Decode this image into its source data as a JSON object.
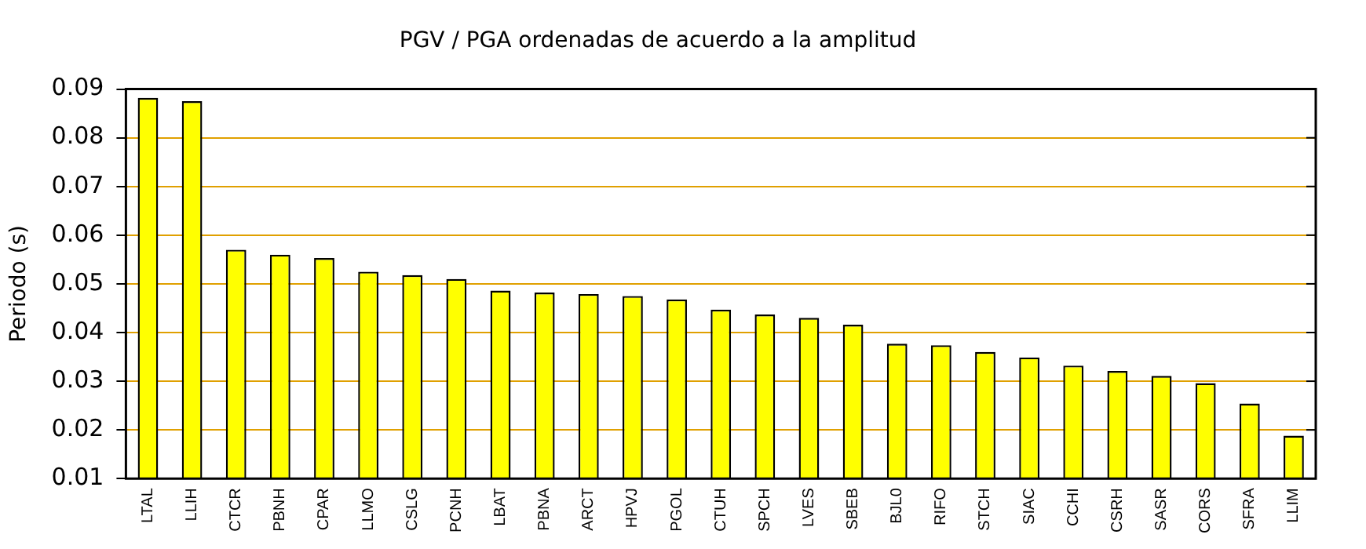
{
  "chart_data": {
    "type": "bar",
    "title": "PGV / PGA ordenadas de acuerdo a la amplitud",
    "ylabel": "Periodo (s)",
    "categories": [
      "LTAL",
      "LLIH",
      "CTCR",
      "PBNH",
      "CPAR",
      "LLMO",
      "CSLG",
      "PCNH",
      "LBAT",
      "PBNA",
      "ARCT",
      "HPVJ",
      "PGOL",
      "CTUH",
      "SPCH",
      "LVES",
      "SBEB",
      "BJL0",
      "RIFO",
      "STCH",
      "SIAC",
      "CCHI",
      "CSRH",
      "SASR",
      "CORS",
      "SFRA",
      "LLIM"
    ],
    "values": [
      0.0882,
      0.0875,
      0.057,
      0.056,
      0.0553,
      0.0525,
      0.0518,
      0.051,
      0.0486,
      0.0482,
      0.0479,
      0.0475,
      0.0468,
      0.0447,
      0.0437,
      0.043,
      0.0416,
      0.0377,
      0.0374,
      0.036,
      0.0349,
      0.0332,
      0.0321,
      0.0311,
      0.0296,
      0.0254,
      0.0188
    ],
    "color": "#ffff00",
    "ylim": [
      0.01,
      0.09
    ],
    "yticks": [
      0.01,
      0.02,
      0.03,
      0.04,
      0.05,
      0.06,
      0.07,
      0.08,
      0.09
    ],
    "grid": "y"
  }
}
